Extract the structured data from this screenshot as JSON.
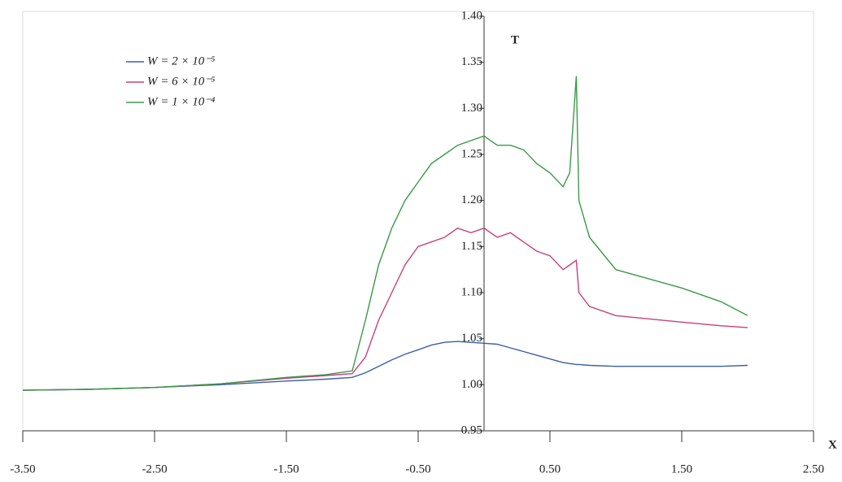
{
  "chart_data": {
    "type": "line",
    "y_label": "T",
    "x_label": "X",
    "x": [
      -3.5,
      -3.0,
      -2.5,
      -2.0,
      -1.5,
      -1.2,
      -1.0,
      -0.9,
      -0.8,
      -0.7,
      -0.6,
      -0.5,
      -0.4,
      -0.3,
      -0.2,
      -0.1,
      0,
      0.1,
      0.2,
      0.3,
      0.4,
      0.5,
      0.6,
      0.65,
      0.7,
      0.72,
      0.8,
      1.0,
      1.5,
      1.8,
      2.0
    ],
    "series": [
      {
        "name": "W = 2 × 10⁻⁵",
        "color": "#3a5fa8",
        "values": [
          0.994,
          0.995,
          0.997,
          1.0,
          1.004,
          1.006,
          1.008,
          1.013,
          1.02,
          1.027,
          1.033,
          1.038,
          1.043,
          1.046,
          1.047,
          1.046,
          1.045,
          1.044,
          1.04,
          1.036,
          1.032,
          1.028,
          1.024,
          1.023,
          1.022,
          1.022,
          1.021,
          1.02,
          1.02,
          1.02,
          1.021
        ]
      },
      {
        "name": "W = 6 × 10⁻⁵",
        "color": "#c8407a",
        "values": [
          0.994,
          0.995,
          0.997,
          1.001,
          1.007,
          1.01,
          1.012,
          1.03,
          1.07,
          1.1,
          1.13,
          1.15,
          1.155,
          1.16,
          1.17,
          1.165,
          1.17,
          1.16,
          1.165,
          1.155,
          1.145,
          1.14,
          1.125,
          1.13,
          1.135,
          1.1,
          1.085,
          1.075,
          1.068,
          1.064,
          1.062
        ]
      },
      {
        "name": "W = 1 × 10⁻⁴",
        "color": "#3a9a4a",
        "values": [
          0.994,
          0.995,
          0.997,
          1.001,
          1.008,
          1.011,
          1.015,
          1.07,
          1.13,
          1.17,
          1.2,
          1.22,
          1.24,
          1.25,
          1.26,
          1.265,
          1.27,
          1.26,
          1.26,
          1.255,
          1.24,
          1.23,
          1.215,
          1.23,
          1.335,
          1.2,
          1.16,
          1.125,
          1.105,
          1.09,
          1.075
        ]
      }
    ],
    "xlim": [
      -3.5,
      2.5
    ],
    "ylim": [
      0.95,
      1.4
    ],
    "xticks": [
      {
        "value": -3.5,
        "label": "-3.50"
      },
      {
        "value": -2.5,
        "label": "-2.50"
      },
      {
        "value": -1.5,
        "label": "-1.50"
      },
      {
        "value": -0.5,
        "label": "-0.50"
      },
      {
        "value": 0.5,
        "label": "0.50"
      },
      {
        "value": 1.5,
        "label": "1.50"
      },
      {
        "value": 2.5,
        "label": "2.50"
      }
    ],
    "yticks": [
      {
        "value": 0.95,
        "label": "0.95"
      },
      {
        "value": 1.0,
        "label": "1.00"
      },
      {
        "value": 1.05,
        "label": "1.05"
      },
      {
        "value": 1.1,
        "label": "1.10"
      },
      {
        "value": 1.15,
        "label": "1.15"
      },
      {
        "value": 1.2,
        "label": "1.20"
      },
      {
        "value": 1.25,
        "label": "1.25"
      },
      {
        "value": 1.3,
        "label": "1.30"
      },
      {
        "value": 1.35,
        "label": "1.35"
      },
      {
        "value": 1.4,
        "label": "1.40"
      }
    ],
    "legend": "upper left"
  }
}
